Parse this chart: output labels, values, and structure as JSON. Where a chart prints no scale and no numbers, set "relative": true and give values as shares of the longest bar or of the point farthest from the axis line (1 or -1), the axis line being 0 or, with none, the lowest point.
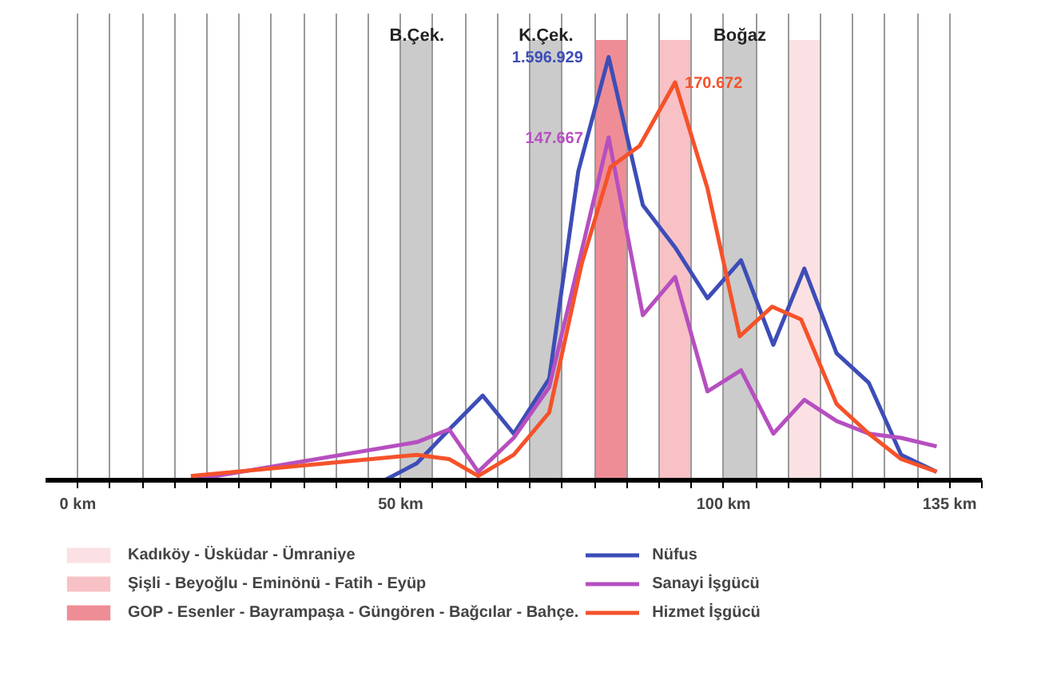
{
  "chart_data": {
    "type": "line",
    "relative": true,
    "x": [
      17.5,
      47.5,
      52.5,
      57.5,
      62.7,
      67.5,
      73,
      77.5,
      82.2,
      87.5,
      92.5,
      97.5,
      102.7,
      107.7,
      112.5,
      117.5,
      122.5,
      127.5,
      133
    ],
    "series": [
      {
        "name": "Nüfus",
        "color": "#3d4db7",
        "values": [
          0,
          0,
          0.04,
          0.12,
          0.2,
          0.11,
          0.24,
          0.73,
          1.0,
          0.65,
          0.55,
          0.43,
          0.52,
          0.32,
          0.5,
          0.3,
          0.23,
          0.06,
          0.02
        ]
      },
      {
        "name": "Sanayi İşgücü",
        "color": "#b64fc0",
        "x": [
          17.5,
          52.5,
          57.5,
          62,
          67.5,
          73,
          82.2,
          87.5,
          92.5,
          97.5,
          102.7,
          107.7,
          112.5,
          117.5,
          122.5,
          127.5,
          133
        ],
        "values": [
          0,
          0.09,
          0.12,
          0.02,
          0.1,
          0.22,
          0.81,
          0.39,
          0.48,
          0.21,
          0.26,
          0.11,
          0.19,
          0.14,
          0.11,
          0.1,
          0.08
        ]
      },
      {
        "name": "Hizmet İşgücü",
        "color": "#f5522a",
        "x": [
          17.5,
          52.5,
          57.5,
          62,
          67.5,
          73,
          78,
          82.5,
          87,
          92.5,
          97.5,
          102.5,
          107.5,
          112,
          117.5,
          122.5,
          127.5,
          133
        ],
        "values": [
          0.01,
          0.06,
          0.05,
          0.01,
          0.06,
          0.16,
          0.51,
          0.74,
          0.79,
          0.94,
          0.69,
          0.34,
          0.41,
          0.38,
          0.18,
          0.11,
          0.05,
          0.02
        ]
      }
    ],
    "xlim": [
      -5,
      140
    ],
    "xticks": [
      {
        "value": 0,
        "label": "0 km"
      },
      {
        "value": 5,
        "label": null
      },
      {
        "value": 10,
        "label": null
      },
      {
        "value": 15,
        "label": null
      },
      {
        "value": 20,
        "label": null
      },
      {
        "value": 25,
        "label": null
      },
      {
        "value": 30,
        "label": null
      },
      {
        "value": 35,
        "label": null
      },
      {
        "value": 40,
        "label": null
      },
      {
        "value": 45,
        "label": null
      },
      {
        "value": 50,
        "label": "50 km"
      },
      {
        "value": 55,
        "label": null
      },
      {
        "value": 60,
        "label": null
      },
      {
        "value": 65,
        "label": null
      },
      {
        "value": 70,
        "label": null
      },
      {
        "value": 75,
        "label": null
      },
      {
        "value": 80,
        "label": null
      },
      {
        "value": 85,
        "label": null
      },
      {
        "value": 90,
        "label": null
      },
      {
        "value": 95,
        "label": null
      },
      {
        "value": 100,
        "label": "100 km"
      },
      {
        "value": 105,
        "label": null
      },
      {
        "value": 110,
        "label": null
      },
      {
        "value": 115,
        "label": null
      },
      {
        "value": 120,
        "label": null
      },
      {
        "value": 125,
        "label": null
      },
      {
        "value": 130,
        "label": null
      },
      {
        "value": 135,
        "label": "135 km"
      },
      {
        "value": 140,
        "label": null
      }
    ],
    "grid": "x",
    "legend": "bottom",
    "marker": "none",
    "line_style": "solid",
    "bands": [
      {
        "axis": "x",
        "from": 50,
        "to": 55,
        "label": null,
        "color": "#cbcbcb"
      },
      {
        "axis": "x",
        "from": 70,
        "to": 75,
        "label": null,
        "color": "#cbcbcb"
      },
      {
        "axis": "x",
        "from": 100,
        "to": 105,
        "label": null,
        "color": "#cbcbcb"
      },
      {
        "axis": "x",
        "from": 110,
        "to": 115,
        "label": "Kadıköy - Üsküdar - Ümraniye",
        "color": "#fbe1e3"
      },
      {
        "axis": "x",
        "from": 90,
        "to": 95,
        "label": "Şişli - Beyoğlu - Eminönü - Fatih - Eyüp",
        "color": "#f7c1c6"
      },
      {
        "axis": "x",
        "from": 80,
        "to": 85,
        "label": "GOP - Esenler - Bayrampaşa - Güngören - Bağcılar - Bahçe.",
        "color": "#ef8d96"
      }
    ],
    "annotations": [
      {
        "text": "1.596.929",
        "x": 82.2,
        "y": 1.0
      },
      {
        "text": "147.667",
        "x": 82.2,
        "y": 0.81
      },
      {
        "text": "170.672",
        "x": 92.5,
        "y": 0.94
      },
      {
        "text": "B.Çek.",
        "x": 52.5,
        "y": 1.05
      },
      {
        "text": "K.Çek.",
        "x": 72.5,
        "y": 1.05
      },
      {
        "text": "Boğaz",
        "x": 102.5,
        "y": 1.05
      }
    ]
  }
}
